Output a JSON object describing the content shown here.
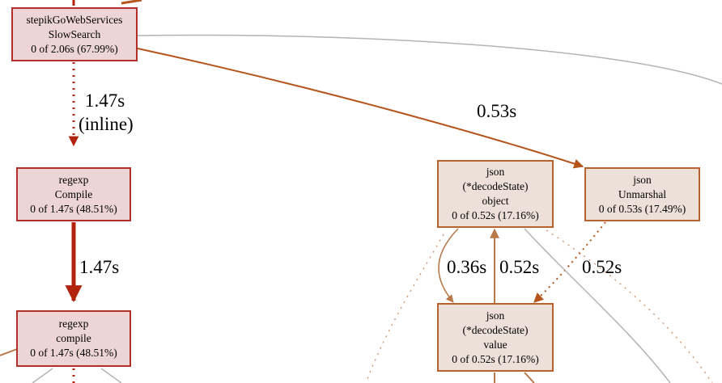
{
  "nodes": {
    "slowsearch": {
      "lines": [
        "stepikGoWebServices",
        "SlowSearch",
        "0 of 2.06s (67.99%)"
      ]
    },
    "compile_upper": {
      "lines": [
        "regexp",
        "Compile",
        "0 of 1.47s (48.51%)"
      ]
    },
    "compile_lower": {
      "lines": [
        "regexp",
        "compile",
        "0 of 1.47s (48.51%)"
      ]
    },
    "decode_object": {
      "lines": [
        "json",
        "(*decodeState)",
        "object",
        "0 of 0.52s (17.16%)"
      ]
    },
    "unmarshal": {
      "lines": [
        "json",
        "Unmarshal",
        "0 of 0.53s (17.49%)"
      ]
    },
    "decode_value": {
      "lines": [
        "json",
        "(*decodeState)",
        "value",
        "0 of 0.52s (17.16%)"
      ]
    }
  },
  "edge_labels": {
    "slowsearch_to_compile": [
      "1.47s",
      "(inline)"
    ],
    "compile_to_compile": "1.47s",
    "slowsearch_to_unmarshal": "0.53s",
    "object_to_value": "0.36s",
    "value_to_object": "0.52s",
    "unmarshal_to_value": "0.52s"
  },
  "colors": {
    "edge_red": "#b2230f",
    "edge_orange": "#b5541b",
    "edge_light": "#b8784a",
    "edge_gray": "#b4b4b4",
    "node_red_fill": "#edd5d5",
    "node_red_border": "#b2302a",
    "node_orange_fill": "#ede0d8",
    "node_orange_border": "#b8632e"
  }
}
